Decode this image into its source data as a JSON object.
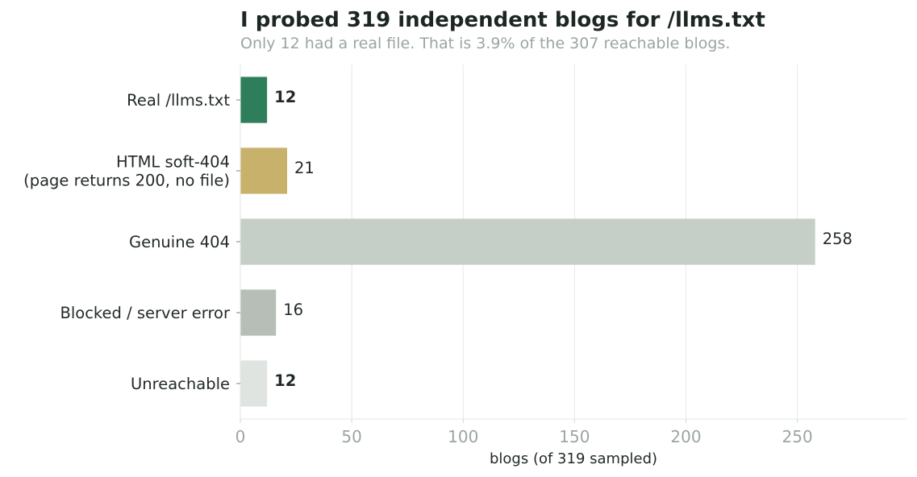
{
  "chart_data": {
    "type": "bar",
    "orientation": "horizontal",
    "title": "I probed 319 independent blogs for /llms.txt",
    "subtitle": "Only 12 had a real file. That is 3.9% of the 307 reachable blogs.",
    "xlabel": "blogs (of 319 sampled)",
    "ylabel": "",
    "xlim": [
      0,
      299
    ],
    "x_ticks": [
      "0",
      "50",
      "100",
      "150",
      "200",
      "250"
    ],
    "x_tick_values": [
      0,
      50,
      100,
      150,
      200,
      250
    ],
    "grid": "vertical",
    "legend": "none",
    "categories": [
      [
        "Real /llms.txt"
      ],
      [
        "HTML soft-404",
        "(page returns 200, no file)"
      ],
      [
        "Genuine 404"
      ],
      [
        "Blocked / server error"
      ],
      [
        "Unreachable"
      ]
    ],
    "values": [
      12,
      21,
      258,
      16,
      12
    ],
    "value_labels": [
      "12",
      "21",
      "258",
      "16",
      "12"
    ],
    "highlight_labels": [
      true,
      false,
      false,
      false,
      true
    ],
    "colors": [
      "#2e7d5b",
      "#c8b26b",
      "#c5cfc8",
      "#b6beb7",
      "#dfe4e1"
    ],
    "highlight_color": "#2e7d5b",
    "text_color": "#222a27",
    "muted_color": "#9aa6a1",
    "grid_color": "#e6e8e7"
  }
}
